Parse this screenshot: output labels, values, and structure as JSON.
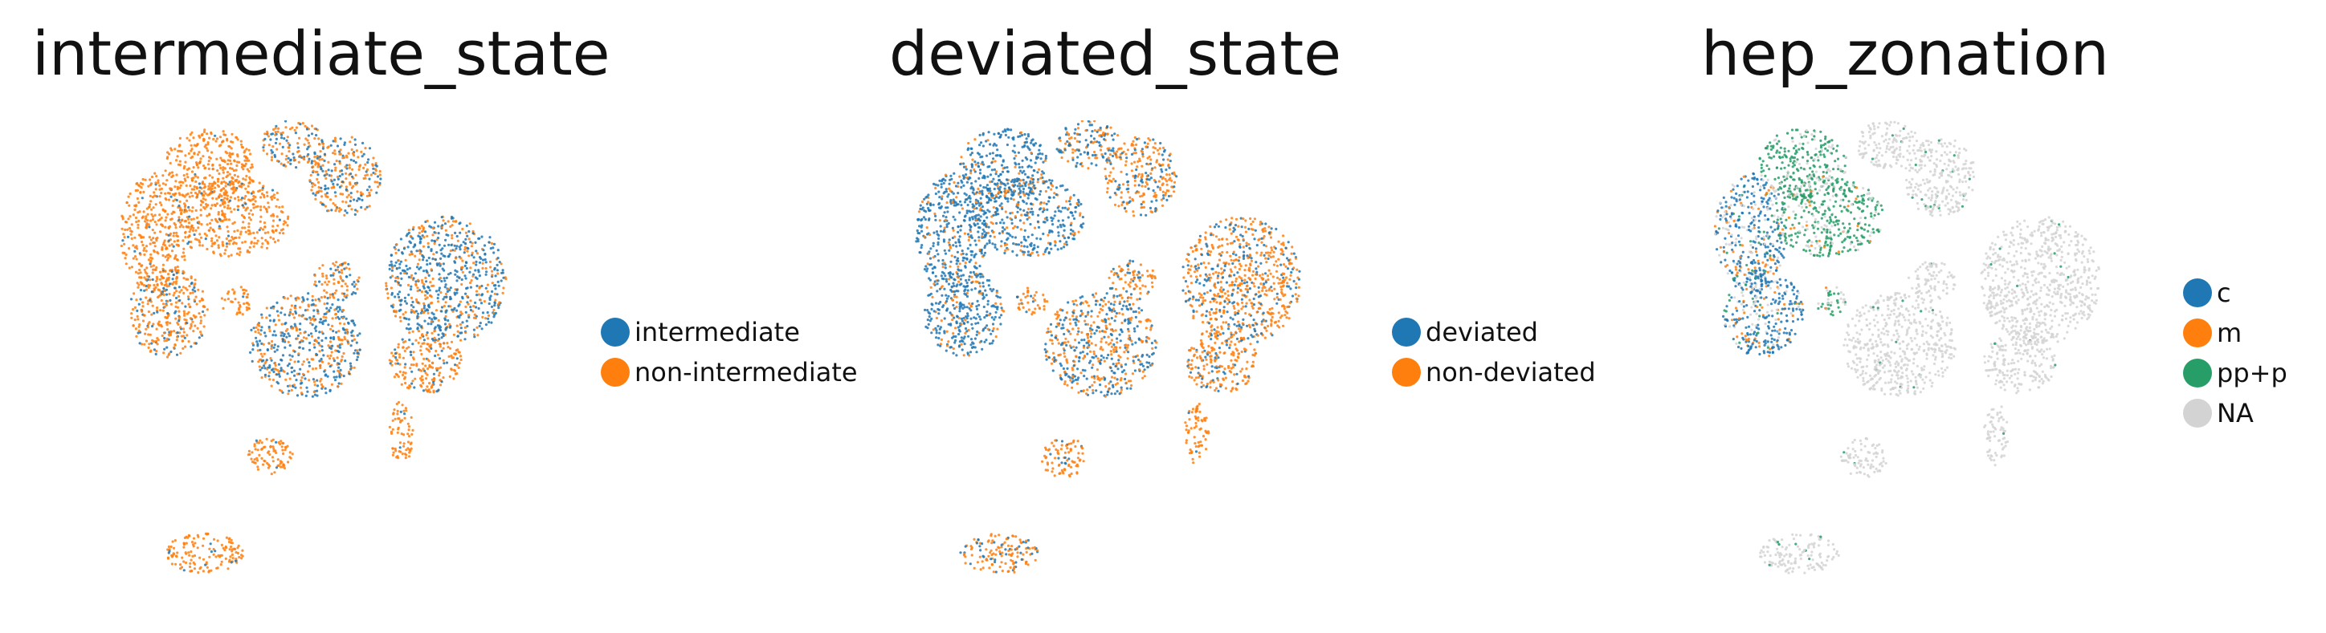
{
  "chart_data": [
    {
      "type": "scatter",
      "title": "intermediate_state",
      "legend_position": "right",
      "grid": false,
      "series": [
        {
          "name": "intermediate",
          "color": "#1f77b4"
        },
        {
          "name": "non-intermediate",
          "color": "#ff7f0e"
        }
      ]
    },
    {
      "type": "scatter",
      "title": "deviated_state",
      "legend_position": "right",
      "grid": false,
      "series": [
        {
          "name": "deviated",
          "color": "#1f77b4"
        },
        {
          "name": "non-deviated",
          "color": "#ff7f0e"
        }
      ]
    },
    {
      "type": "scatter",
      "title": "hep_zonation",
      "legend_position": "right",
      "grid": false,
      "series": [
        {
          "name": "c",
          "color": "#1f77b4"
        },
        {
          "name": "m",
          "color": "#ff7f0e"
        },
        {
          "name": "pp+p",
          "color": "#279e68"
        },
        {
          "name": "NA",
          "color": "#d3d3d3"
        }
      ]
    }
  ]
}
